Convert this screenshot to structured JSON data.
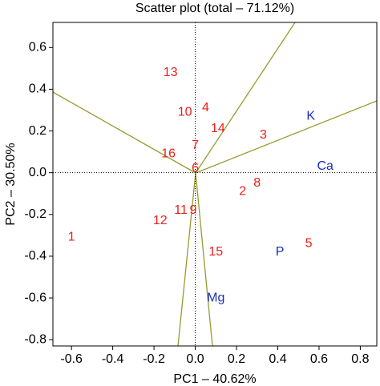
{
  "chart_data": {
    "type": "scatter",
    "title": "Scatter plot (total – 71.12%)",
    "x_label": "PC1 – 40.62%",
    "y_label": "PC2 – 30.50%",
    "xlim": [
      -0.69,
      0.88
    ],
    "ylim": [
      -0.83,
      0.72
    ],
    "xticks": [
      -0.6,
      -0.4,
      -0.2,
      {
        "value": 0,
        "label": "0.0"
      },
      0.2,
      0.4,
      0.6,
      0.8
    ],
    "yticks": [
      -0.8,
      -0.6,
      -0.4,
      -0.2,
      {
        "value": 0,
        "label": "0.0"
      },
      0.2,
      0.4,
      0.6
    ],
    "points": {
      "color": "#e8201c",
      "items": [
        {
          "label": "1",
          "x": -0.6,
          "y": -0.31
        },
        {
          "label": "13",
          "x": -0.12,
          "y": 0.48
        },
        {
          "label": "10",
          "x": -0.05,
          "y": 0.29
        },
        {
          "label": "4",
          "x": 0.05,
          "y": 0.31
        },
        {
          "label": "14",
          "x": 0.11,
          "y": 0.21
        },
        {
          "label": "3",
          "x": 0.33,
          "y": 0.18
        },
        {
          "label": "7",
          "x": 0.0,
          "y": 0.13
        },
        {
          "label": "16",
          "x": -0.13,
          "y": 0.09
        },
        {
          "label": "6",
          "x": 0.0,
          "y": 0.02
        },
        {
          "label": "8",
          "x": 0.3,
          "y": -0.05
        },
        {
          "label": "2",
          "x": 0.23,
          "y": -0.09
        },
        {
          "label": "11",
          "x": -0.07,
          "y": -0.18
        },
        {
          "label": "9",
          "x": -0.01,
          "y": -0.18
        },
        {
          "label": "12",
          "x": -0.17,
          "y": -0.23
        },
        {
          "label": "15",
          "x": 0.1,
          "y": -0.38
        },
        {
          "label": "5",
          "x": 0.55,
          "y": -0.34
        }
      ]
    },
    "variables": {
      "color": "#1a2fb8",
      "items": [
        {
          "label": "K",
          "x": 0.56,
          "y": 0.27
        },
        {
          "label": "Ca",
          "x": 0.63,
          "y": 0.03
        },
        {
          "label": "P",
          "x": 0.41,
          "y": -0.38
        },
        {
          "label": "Mg",
          "x": 0.1,
          "y": -0.6
        }
      ]
    }
  }
}
